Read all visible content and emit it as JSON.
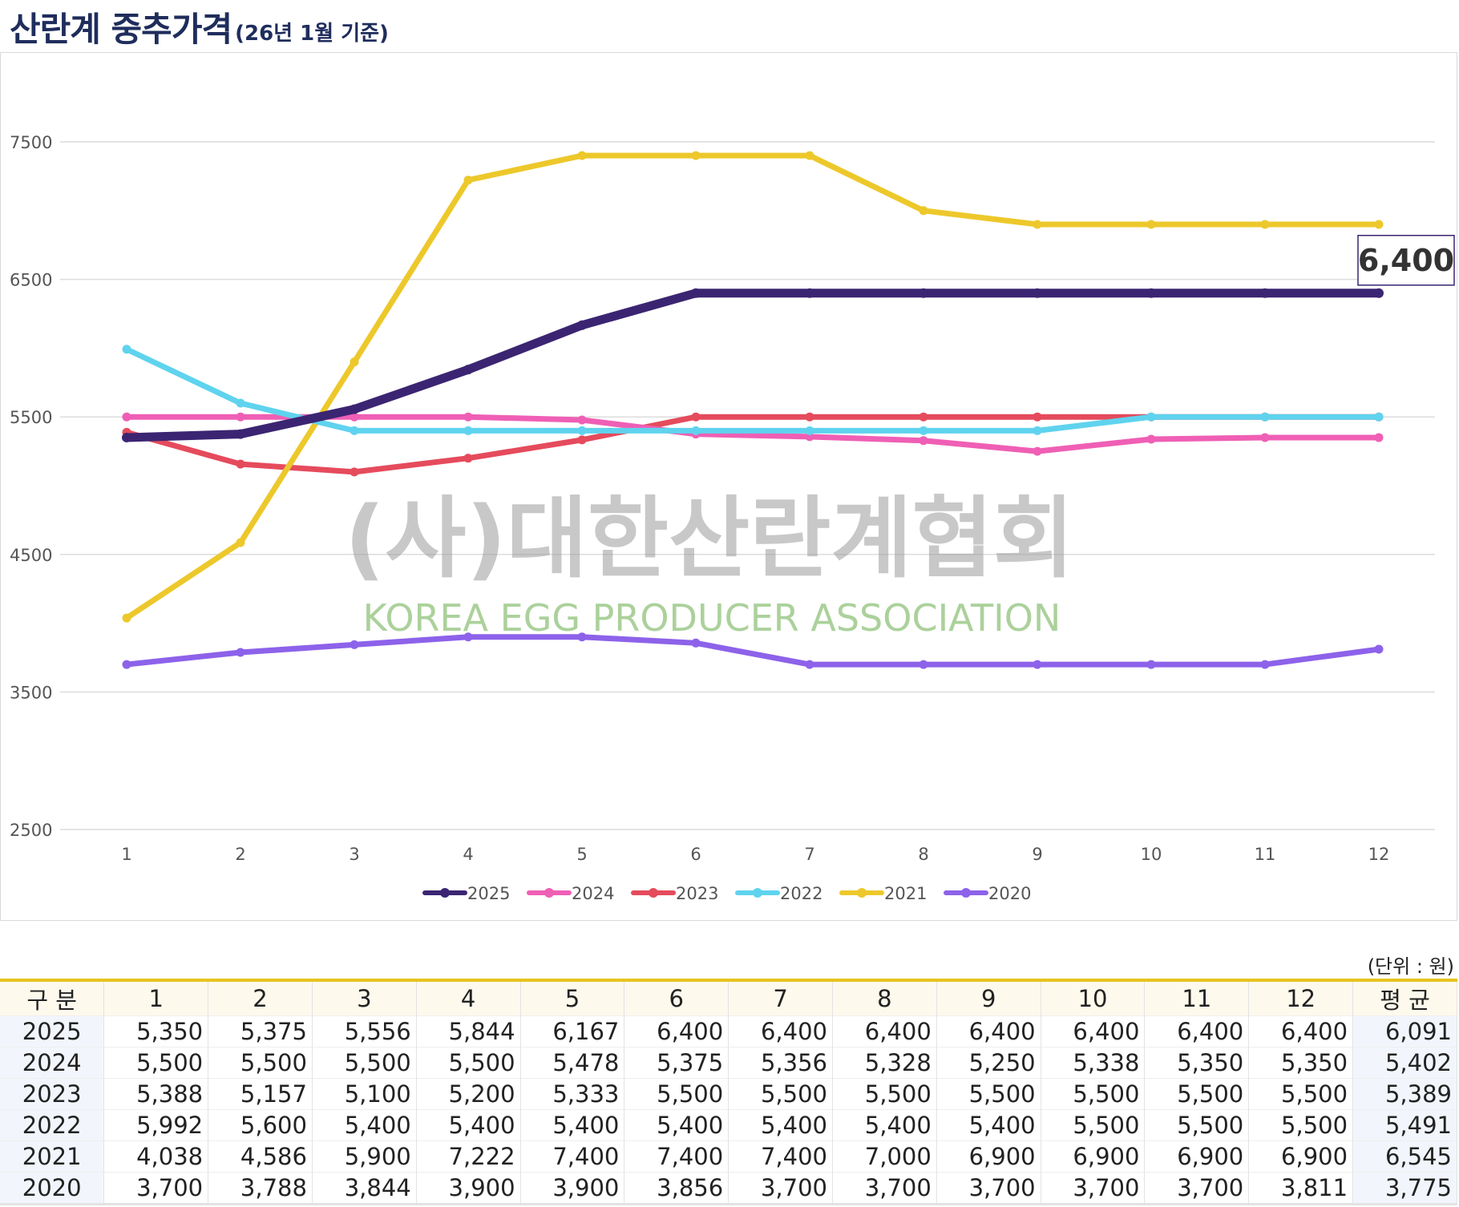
{
  "header": {
    "title": "산란계 중추가격",
    "subtitle": "(26년 1월 기준)"
  },
  "chart_data": {
    "type": "line",
    "x": [
      1,
      2,
      3,
      4,
      5,
      6,
      7,
      8,
      9,
      10,
      11,
      12
    ],
    "ylim": [
      2500,
      7500
    ],
    "yticks": [
      2500,
      3500,
      4500,
      5500,
      6500,
      7500
    ],
    "grid": true,
    "legend_position": "bottom",
    "series": [
      {
        "name": "2025",
        "color": "#3b2572",
        "values": [
          5350,
          5375,
          5556,
          5844,
          6167,
          6400,
          6400,
          6400,
          6400,
          6400,
          6400,
          6400
        ]
      },
      {
        "name": "2024",
        "color": "#ef5fb5",
        "values": [
          5500,
          5500,
          5500,
          5500,
          5478,
          5375,
          5356,
          5328,
          5250,
          5338,
          5350,
          5350
        ]
      },
      {
        "name": "2023",
        "color": "#e54b5c",
        "values": [
          5388,
          5157,
          5100,
          5200,
          5333,
          5500,
          5500,
          5500,
          5500,
          5500,
          5500,
          5500
        ]
      },
      {
        "name": "2022",
        "color": "#5fd3ee",
        "values": [
          5992,
          5600,
          5400,
          5400,
          5400,
          5400,
          5400,
          5400,
          5400,
          5500,
          5500,
          5500
        ]
      },
      {
        "name": "2021",
        "color": "#edc82b",
        "values": [
          4038,
          4586,
          5900,
          7222,
          7400,
          7400,
          7400,
          7000,
          6900,
          6900,
          6900,
          6900
        ]
      },
      {
        "name": "2020",
        "color": "#8d62ea",
        "values": [
          3700,
          3788,
          3844,
          3900,
          3900,
          3856,
          3700,
          3700,
          3700,
          3700,
          3700,
          3811
        ]
      }
    ],
    "annotation": "6,400"
  },
  "watermark": {
    "kor": "(사)대한산란계협회",
    "eng": "KOREA EGG PRODUCER ASSOCIATION"
  },
  "table": {
    "unit": "(단위 : 원)",
    "headers": [
      "구 분",
      "1",
      "2",
      "3",
      "4",
      "5",
      "6",
      "7",
      "8",
      "9",
      "10",
      "11",
      "12",
      "평 균"
    ],
    "rows": [
      [
        "2025",
        "5,350",
        "5,375",
        "5,556",
        "5,844",
        "6,167",
        "6,400",
        "6,400",
        "6,400",
        "6,400",
        "6,400",
        "6,400",
        "6,400",
        "6,091"
      ],
      [
        "2024",
        "5,500",
        "5,500",
        "5,500",
        "5,500",
        "5,478",
        "5,375",
        "5,356",
        "5,328",
        "5,250",
        "5,338",
        "5,350",
        "5,350",
        "5,402"
      ],
      [
        "2023",
        "5,388",
        "5,157",
        "5,100",
        "5,200",
        "5,333",
        "5,500",
        "5,500",
        "5,500",
        "5,500",
        "5,500",
        "5,500",
        "5,500",
        "5,389"
      ],
      [
        "2022",
        "5,992",
        "5,600",
        "5,400",
        "5,400",
        "5,400",
        "5,400",
        "5,400",
        "5,400",
        "5,400",
        "5,500",
        "5,500",
        "5,500",
        "5,491"
      ],
      [
        "2021",
        "4,038",
        "4,586",
        "5,900",
        "7,222",
        "7,400",
        "7,400",
        "7,400",
        "7,000",
        "6,900",
        "6,900",
        "6,900",
        "6,900",
        "6,545"
      ],
      [
        "2020",
        "3,700",
        "3,788",
        "3,844",
        "3,900",
        "3,900",
        "3,856",
        "3,700",
        "3,700",
        "3,700",
        "3,700",
        "3,700",
        "3,811",
        "3,775"
      ]
    ]
  }
}
